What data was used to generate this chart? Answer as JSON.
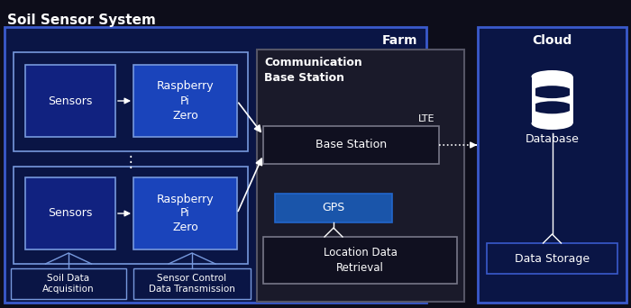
{
  "bg_color": "#0d0d1a",
  "farm_bg": "#0a1545",
  "farm_border": "#3a5acc",
  "comm_bg": "#1a1a2a",
  "comm_border": "#555566",
  "cloud_bg": "#0a1545",
  "cloud_border": "#3a5acc",
  "box_blue_dark": "#112280",
  "box_blue_bright": "#1a44bb",
  "box_border_light": "#7799dd",
  "box_station_bg": "#101020",
  "box_station_border": "#777788",
  "gps_bg": "#1a55aa",
  "gps_border": "#2266cc",
  "loc_bg": "#101020",
  "loc_border": "#777788",
  "ds_bg": "#0a1545",
  "ds_border": "#3a5acc",
  "text_white": "#ffffff",
  "title_main": "Soil Sensor System",
  "label_farm": "Farm",
  "label_cloud": "Cloud",
  "label_comm": "Communication\nBase Station",
  "label_sensors1": "Sensors",
  "label_rpi1": "Raspberry\nPi\nZero",
  "label_sensors2": "Sensors",
  "label_rpi2": "Raspberry\nPi\nZero",
  "label_base": "Base Station",
  "label_lte": "LTE",
  "label_gps": "GPS",
  "label_loc": "Location Data\nRetrieval",
  "label_soil": "Soil Data\nAcquisition",
  "label_sensor_ctrl": "Sensor Control\nData Transmission",
  "label_database": "Database",
  "label_storage": "Data Storage"
}
